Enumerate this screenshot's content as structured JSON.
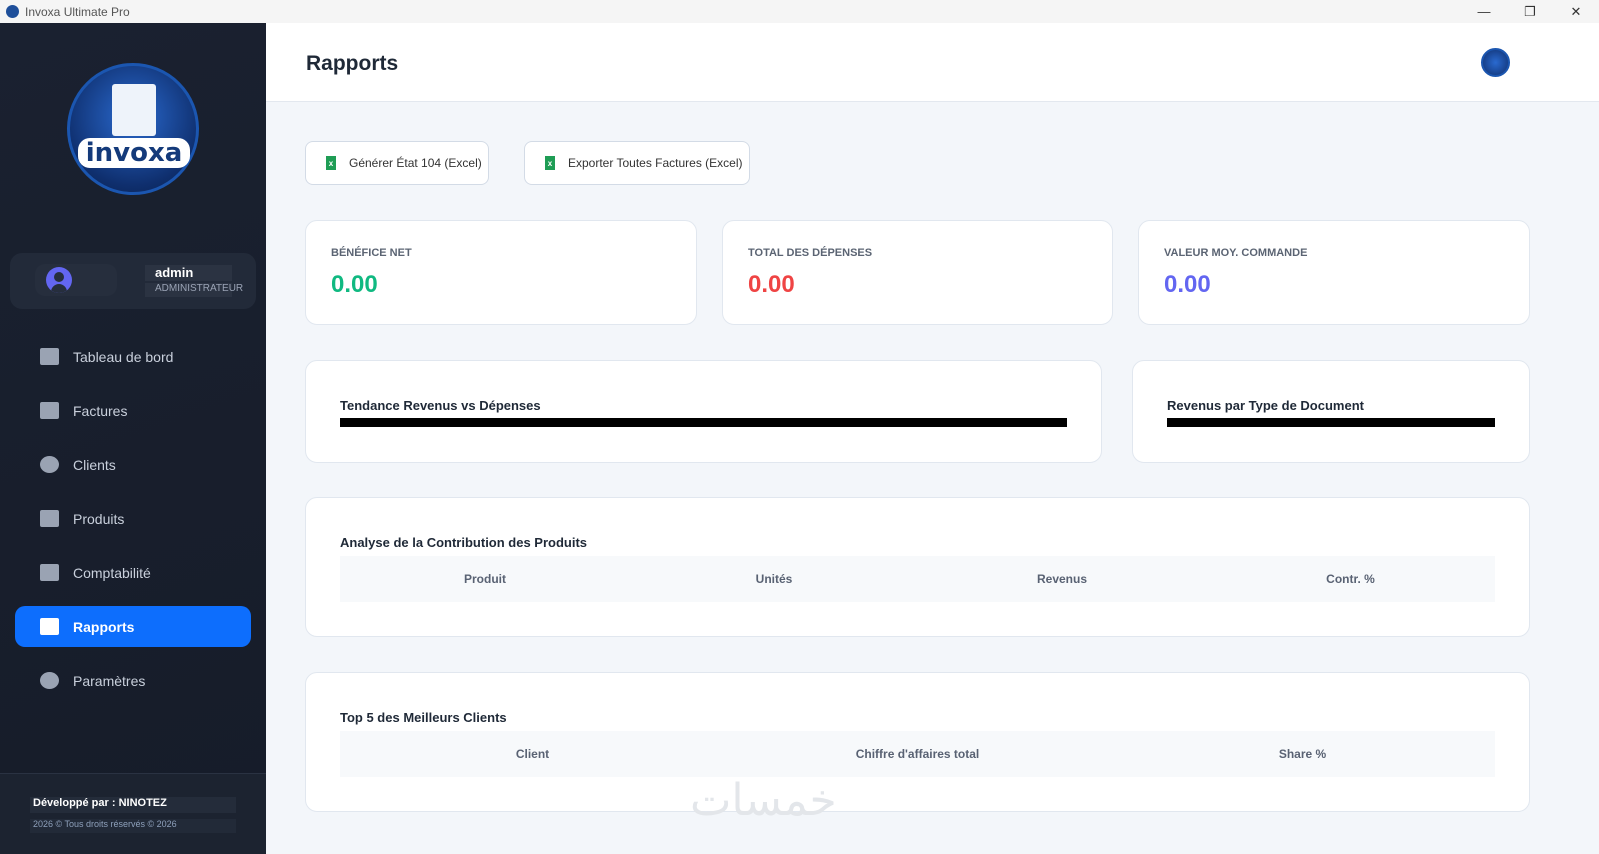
{
  "window": {
    "title": "Invoxa Ultimate Pro",
    "controls": [
      "—",
      "❐",
      "✕"
    ]
  },
  "sidebar": {
    "logo_text": "invoxa",
    "user": {
      "name": "admin",
      "role": "ADMINISTRATEUR"
    },
    "items": [
      {
        "label": "Tableau de bord",
        "icon": "dashboard-icon"
      },
      {
        "label": "Factures",
        "icon": "receipt-icon"
      },
      {
        "label": "Clients",
        "icon": "user-circle-icon"
      },
      {
        "label": "Produits",
        "icon": "boxes-icon"
      },
      {
        "label": "Comptabilité",
        "icon": "wallet-icon"
      },
      {
        "label": "Rapports",
        "icon": "chart-bar-icon",
        "active": true
      },
      {
        "label": "Paramètres",
        "icon": "gear-icon"
      }
    ],
    "footer": {
      "developer": "Développé par : NINOTEZ",
      "copyright": "2026 © Tous droits réservés © 2026"
    }
  },
  "header": {
    "title": "Rapports"
  },
  "actions": {
    "etat104": "Générer État 104 (Excel)",
    "export_all": "Exporter Toutes Factures (Excel)"
  },
  "kpis": [
    {
      "label": "BÉNÉFICE NET",
      "value": "0.00",
      "color": "#10b981"
    },
    {
      "label": "TOTAL DES DÉPENSES",
      "value": "0.00",
      "color": "#ef4444"
    },
    {
      "label": "VALEUR MOY. COMMANDE",
      "value": "0.00",
      "color": "#6366f1"
    }
  ],
  "charts": {
    "trend_title": "Tendance Revenus vs Dépenses",
    "doc_type_title": "Revenus par Type de Document"
  },
  "products_table": {
    "title": "Analyse de la Contribution des Produits",
    "columns": [
      "Produit",
      "Unités",
      "Revenus",
      "Contr. %"
    ]
  },
  "clients_table": {
    "title": "Top 5 des Meilleurs Clients",
    "columns": [
      "Client",
      "Chiffre d'affaires total",
      "Share %"
    ]
  },
  "watermark": "خمسات"
}
